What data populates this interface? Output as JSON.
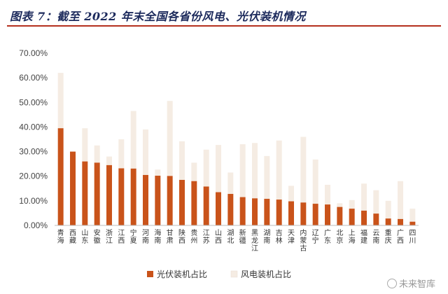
{
  "title": "图表 7：截至 2022 年末全国各省份风电、光伏装机情况",
  "watermark": "未来智库",
  "colors": {
    "solar": "#c9531a",
    "wind": "#f5ece3",
    "axis": "#bdbdbd",
    "title_rule": "#b5301e"
  },
  "chart_data": {
    "type": "bar",
    "title": "",
    "ylim": [
      0,
      70
    ],
    "y_ticks": [
      "0.00%",
      "10.00%",
      "20.00%",
      "30.00%",
      "40.00%",
      "50.00%",
      "60.00%",
      "70.00%"
    ],
    "legend_position": "bottom-left",
    "grid": false,
    "categories": [
      "青海",
      "西藏",
      "山东",
      "安徽",
      "浙江",
      "江西",
      "宁夏",
      "河南",
      "海南",
      "甘肃",
      "陕西",
      "贵州",
      "江苏",
      "山西",
      "湖北",
      "新疆",
      "黑龙江",
      "湖南",
      "吉林",
      "天津",
      "内蒙古",
      "辽宁",
      "广东",
      "北京",
      "上海",
      "福建",
      "云南",
      "重庆",
      "广西",
      "四川"
    ],
    "series": [
      {
        "name": "光伏装机占比",
        "values": [
          39.5,
          30,
          26,
          25.5,
          24.5,
          23.2,
          23.1,
          20.5,
          20.2,
          20.1,
          18.5,
          18,
          15.8,
          13.5,
          12.8,
          11.5,
          11,
          10.8,
          10.5,
          9.8,
          9.3,
          8.8,
          8.5,
          7.5,
          6.8,
          6,
          4.8,
          2.8,
          2.6,
          1.5
        ]
      },
      {
        "name": "风电装机占比",
        "values": [
          22.5,
          0,
          13.5,
          7,
          3.5,
          11.8,
          23.4,
          18.5,
          2.5,
          30.5,
          15.7,
          7.5,
          15,
          19.2,
          8.7,
          21.5,
          22.5,
          17.4,
          24,
          6.3,
          26.7,
          18,
          8,
          1.5,
          3.5,
          11,
          9.5,
          7.2,
          15.4,
          5.3
        ]
      }
    ]
  }
}
